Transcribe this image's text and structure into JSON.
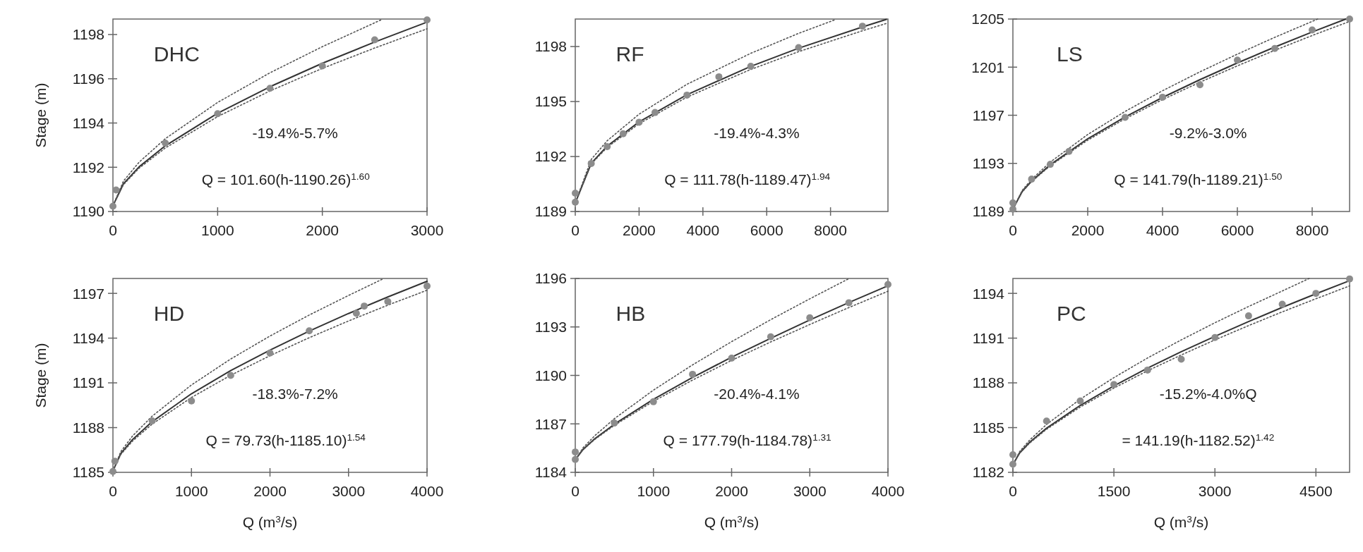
{
  "chart_data": [
    {
      "type": "scatter",
      "title": "DHC",
      "ylabel": "Stage (m)",
      "xlim": [
        0,
        3000
      ],
      "xticks": [
        0,
        1000,
        2000,
        3000
      ],
      "ylim": [
        1190,
        1198.7
      ],
      "yticks": [
        1190,
        1192,
        1194,
        1196,
        1198
      ],
      "annotations": [
        "-19.4%-5.7%",
        "Q = 101.60(h-1190.26)$^{1.60}$"
      ],
      "series": [
        {
          "marker": "circle",
          "color": "#8c8c8c",
          "x": [
            0,
            30,
            500,
            1000,
            1500,
            2000,
            2500,
            3000
          ],
          "values": [
            1190.24,
            1190.97,
            1193.09,
            1194.42,
            1195.57,
            1196.58,
            1197.76,
            1198.66
          ]
        },
        {
          "type": "line",
          "line_style": "solid",
          "color": "#333333",
          "x": [
            0,
            100,
            250,
            500,
            1000,
            1500,
            2000,
            2500,
            3000
          ],
          "values": [
            1190.26,
            1191.25,
            1192.02,
            1192.97,
            1194.44,
            1195.64,
            1196.7,
            1197.66,
            1198.56
          ]
        },
        {
          "type": "line",
          "line_style": "dotted",
          "color": "#555555",
          "x": [
            0,
            100,
            250,
            500,
            1000,
            1500,
            2000,
            2500,
            2560
          ],
          "values": [
            1190.26,
            1191.37,
            1192.23,
            1193.29,
            1194.93,
            1196.27,
            1197.45,
            1198.53,
            1198.66
          ]
        },
        {
          "type": "line",
          "line_style": "dotted",
          "color": "#555555",
          "x": [
            0,
            100,
            250,
            500,
            1000,
            1500,
            2000,
            2500,
            3000
          ],
          "values": [
            1190.26,
            1191.21,
            1191.96,
            1192.87,
            1194.29,
            1195.45,
            1196.47,
            1197.39,
            1198.26
          ]
        }
      ]
    },
    {
      "type": "scatter",
      "title": "RF",
      "xlim": [
        0,
        9800
      ],
      "xticks": [
        0,
        2000,
        4000,
        6000,
        8000
      ],
      "ylim": [
        1189,
        1199.5
      ],
      "yticks": [
        1189,
        1192,
        1195,
        1198
      ],
      "annotations": [
        "-19.4%-4.3%",
        "Q = 111.78(h-1189.47)$^{1.94}$"
      ],
      "series": [
        {
          "marker": "circle",
          "color": "#8c8c8c",
          "x": [
            0,
            0,
            500,
            1000,
            1500,
            2000,
            2500,
            3500,
            4500,
            5500,
            7000,
            9000
          ],
          "values": [
            1189.51,
            1190.0,
            1191.62,
            1192.54,
            1193.24,
            1193.87,
            1194.4,
            1195.35,
            1196.35,
            1196.92,
            1197.94,
            1199.11
          ]
        },
        {
          "type": "line",
          "line_style": "solid",
          "color": "#333333",
          "x": [
            0,
            500,
            1000,
            2000,
            3500,
            5500,
            7000,
            9000,
            9750
          ],
          "values": [
            1189.47,
            1191.63,
            1192.57,
            1193.89,
            1195.37,
            1196.92,
            1197.91,
            1199.07,
            1199.48
          ]
        },
        {
          "type": "line",
          "line_style": "dotted",
          "color": "#555555",
          "x": [
            0,
            500,
            1000,
            2000,
            3500,
            5500,
            7000,
            8170
          ],
          "values": [
            1189.47,
            1191.84,
            1192.86,
            1194.31,
            1195.94,
            1197.63,
            1198.72,
            1199.48
          ]
        },
        {
          "type": "line",
          "line_style": "dotted",
          "color": "#555555",
          "x": [
            0,
            500,
            1000,
            2000,
            3500,
            5500,
            7000,
            9000,
            9750
          ],
          "values": [
            1189.47,
            1191.59,
            1192.5,
            1193.79,
            1195.24,
            1196.75,
            1197.72,
            1198.86,
            1199.26
          ]
        }
      ]
    },
    {
      "type": "scatter",
      "title": "LS",
      "xlim": [
        0,
        9000
      ],
      "xticks": [
        0,
        2000,
        4000,
        6000,
        8000
      ],
      "ylim": [
        1189,
        1205
      ],
      "yticks": [
        1189,
        1193,
        1197,
        1201,
        1205
      ],
      "annotations": [
        "-9.2%-3.0%",
        "Q = 141.79(h-1189.21)$^{1.50}$"
      ],
      "series": [
        {
          "marker": "circle",
          "color": "#8c8c8c",
          "x": [
            0,
            0,
            500,
            1000,
            1500,
            3000,
            4000,
            5000,
            6000,
            7000,
            8000,
            9000
          ],
          "values": [
            1189.19,
            1189.72,
            1191.69,
            1192.92,
            1194.0,
            1196.82,
            1198.5,
            1199.54,
            1201.59,
            1202.55,
            1204.09,
            1205.0
          ]
        },
        {
          "type": "line",
          "line_style": "solid",
          "color": "#333333",
          "x": [
            0,
            250,
            500,
            1000,
            2000,
            3000,
            4000,
            5000,
            6000,
            7000,
            8000,
            8900
          ],
          "values": [
            1189.21,
            1190.67,
            1191.53,
            1192.89,
            1195.05,
            1196.86,
            1198.48,
            1199.96,
            1201.35,
            1202.67,
            1203.92,
            1205.0
          ]
        },
        {
          "type": "line",
          "line_style": "dotted",
          "color": "#555555",
          "x": [
            0,
            250,
            500,
            1000,
            2000,
            3000,
            4000,
            5000,
            6000,
            7000,
            8150
          ],
          "values": [
            1189.21,
            1190.76,
            1191.67,
            1193.11,
            1195.4,
            1197.32,
            1199.04,
            1200.61,
            1202.08,
            1203.48,
            1205.0
          ]
        },
        {
          "type": "line",
          "line_style": "dotted",
          "color": "#555555",
          "x": [
            0,
            250,
            500,
            1000,
            2000,
            3000,
            4000,
            5000,
            6000,
            7000,
            8000,
            9000
          ],
          "values": [
            1189.21,
            1190.64,
            1191.48,
            1192.81,
            1194.93,
            1196.71,
            1198.3,
            1199.75,
            1201.11,
            1202.4,
            1203.63,
            1204.8
          ]
        }
      ]
    },
    {
      "type": "scatter",
      "title": "HD",
      "xlabel": "Q (m$^{3}$/s)",
      "ylabel": "Stage (m)",
      "xlim": [
        0,
        4000
      ],
      "xticks": [
        0,
        1000,
        2000,
        3000,
        4000
      ],
      "ylim": [
        1185,
        1198
      ],
      "yticks": [
        1185,
        1188,
        1191,
        1194,
        1197
      ],
      "annotations": [
        "-18.3%-7.2%",
        "Q = 79.73(h-1185.10)$^{1.54}$"
      ],
      "series": [
        {
          "marker": "circle",
          "color": "#8c8c8c",
          "x": [
            0,
            25,
            500,
            1000,
            1500,
            2000,
            2500,
            3100,
            3200,
            3500,
            4000
          ],
          "values": [
            1185.06,
            1185.75,
            1188.45,
            1189.79,
            1191.5,
            1193.0,
            1194.49,
            1195.66,
            1196.15,
            1196.45,
            1197.49
          ]
        },
        {
          "type": "line",
          "line_style": "solid",
          "color": "#333333",
          "x": [
            0,
            100,
            250,
            500,
            1000,
            1500,
            2000,
            2500,
            3000,
            3500,
            4000
          ],
          "values": [
            1185.1,
            1186.26,
            1187.2,
            1188.4,
            1190.27,
            1191.82,
            1193.2,
            1194.47,
            1195.65,
            1196.76,
            1197.81
          ]
        },
        {
          "type": "line",
          "line_style": "dotted",
          "color": "#555555",
          "x": [
            0,
            100,
            250,
            500,
            1000,
            1500,
            2000,
            2500,
            3000,
            3430
          ],
          "values": [
            1185.1,
            1186.39,
            1187.44,
            1188.77,
            1190.86,
            1192.6,
            1194.14,
            1195.55,
            1196.86,
            1197.95
          ]
        },
        {
          "type": "line",
          "line_style": "dotted",
          "color": "#555555",
          "x": [
            0,
            100,
            250,
            500,
            1000,
            1500,
            2000,
            2500,
            3000,
            3500,
            4000
          ],
          "values": [
            1185.1,
            1186.2,
            1187.1,
            1188.24,
            1190.02,
            1191.51,
            1192.82,
            1194.03,
            1195.15,
            1196.21,
            1197.21
          ]
        }
      ]
    },
    {
      "type": "scatter",
      "title": "HB",
      "xlabel": "Q (m$^{3}$/s)",
      "xlim": [
        0,
        4000
      ],
      "xticks": [
        0,
        1000,
        2000,
        3000,
        4000
      ],
      "ylim": [
        1184,
        1196
      ],
      "yticks": [
        1184,
        1187,
        1190,
        1193,
        1196
      ],
      "annotations": [
        "-20.4%-4.1%",
        "Q = 177.79(h-1184.78)$^{1.31}$"
      ],
      "series": [
        {
          "marker": "circle",
          "color": "#8c8c8c",
          "x": [
            0,
            0,
            500,
            1000,
            1500,
            2000,
            2500,
            3000,
            3500,
            4000
          ],
          "values": [
            1184.8,
            1185.26,
            1187.05,
            1188.37,
            1190.07,
            1191.07,
            1192.39,
            1193.57,
            1194.5,
            1195.63
          ]
        },
        {
          "type": "line",
          "line_style": "solid",
          "color": "#333333",
          "x": [
            0,
            100,
            250,
            500,
            1000,
            1500,
            2000,
            2500,
            3000,
            3500,
            4000
          ],
          "values": [
            1184.78,
            1185.42,
            1186.08,
            1186.98,
            1188.52,
            1189.87,
            1191.13,
            1192.3,
            1193.43,
            1194.51,
            1195.55
          ]
        },
        {
          "type": "line",
          "line_style": "dotted",
          "color": "#555555",
          "x": [
            0,
            100,
            250,
            500,
            1000,
            1500,
            2000,
            2500,
            3000,
            3500
          ],
          "values": [
            1184.78,
            1185.52,
            1186.27,
            1187.32,
            1189.09,
            1190.65,
            1192.09,
            1193.45,
            1194.74,
            1195.99
          ]
        },
        {
          "type": "line",
          "line_style": "dotted",
          "color": "#555555",
          "x": [
            0,
            100,
            250,
            500,
            1000,
            1500,
            2000,
            2500,
            3000,
            3500,
            4000
          ],
          "values": [
            1184.78,
            1185.4,
            1186.04,
            1186.91,
            1188.4,
            1189.71,
            1190.93,
            1192.07,
            1193.15,
            1194.2,
            1195.21
          ]
        }
      ]
    },
    {
      "type": "scatter",
      "title": "PC",
      "xlabel": "Q (m$^{3}$/s)",
      "xlim": [
        0,
        5000
      ],
      "xticks": [
        0,
        1500,
        3000,
        4500
      ],
      "ylim": [
        1182,
        1195
      ],
      "yticks": [
        1182,
        1185,
        1188,
        1191,
        1194
      ],
      "annotations": [
        "-15.2%-4.0%Q",
        "= 141.19(h-1182.52)$^{1.42}$"
      ],
      "series": [
        {
          "marker": "circle",
          "color": "#8c8c8c",
          "x": [
            0,
            0,
            500,
            1000,
            1500,
            2000,
            2500,
            3000,
            3500,
            4000,
            4500,
            5000
          ],
          "values": [
            1182.54,
            1183.18,
            1185.44,
            1186.79,
            1187.89,
            1188.86,
            1189.59,
            1191.04,
            1192.49,
            1193.27,
            1194.0,
            1194.97
          ]
        },
        {
          "type": "line",
          "line_style": "solid",
          "color": "#333333",
          "x": [
            0,
            100,
            250,
            500,
            1000,
            1500,
            2000,
            2500,
            3000,
            3500,
            4000,
            4500,
            5000
          ],
          "values": [
            1182.52,
            1183.3,
            1184.02,
            1184.96,
            1186.49,
            1187.8,
            1188.99,
            1190.09,
            1191.12,
            1192.11,
            1193.06,
            1193.97,
            1194.85
          ]
        },
        {
          "type": "line",
          "line_style": "dotted",
          "color": "#555555",
          "x": [
            0,
            100,
            250,
            500,
            1000,
            1500,
            2000,
            2500,
            3000,
            3500,
            4000,
            4400
          ],
          "values": [
            1182.52,
            1183.39,
            1184.17,
            1185.21,
            1186.91,
            1188.35,
            1189.67,
            1190.88,
            1192.03,
            1193.12,
            1194.16,
            1195.0
          ]
        },
        {
          "type": "line",
          "line_style": "dotted",
          "color": "#555555",
          "x": [
            0,
            100,
            250,
            500,
            1000,
            1500,
            2000,
            2500,
            3000,
            3500,
            4000,
            4500,
            5000
          ],
          "values": [
            1182.52,
            1183.28,
            1183.97,
            1184.89,
            1186.38,
            1187.65,
            1188.81,
            1189.87,
            1190.88,
            1191.84,
            1192.76,
            1193.64,
            1194.5
          ]
        }
      ]
    }
  ]
}
